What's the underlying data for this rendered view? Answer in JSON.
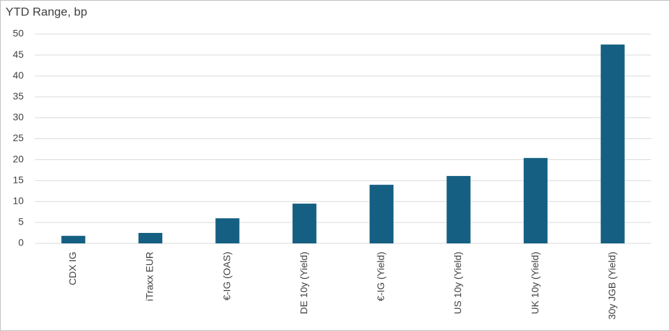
{
  "chart_data": {
    "type": "bar",
    "title": "YTD Range, bp",
    "categories": [
      "CDX IG",
      "iTraxx EUR",
      "€-IG (OAS)",
      "DE 10y (Yield)",
      "€-IG (Yield)",
      "US 10y (Yield)",
      "UK 10y (Yield)",
      "30y JGB (Yield)"
    ],
    "values": [
      1.8,
      2.5,
      6.0,
      9.5,
      14.0,
      16.1,
      20.4,
      47.5
    ],
    "color": "#156082",
    "ylim": [
      0,
      50
    ],
    "yticks": [
      0,
      5,
      10,
      15,
      20,
      25,
      30,
      35,
      40,
      45,
      50
    ],
    "grid": true
  }
}
